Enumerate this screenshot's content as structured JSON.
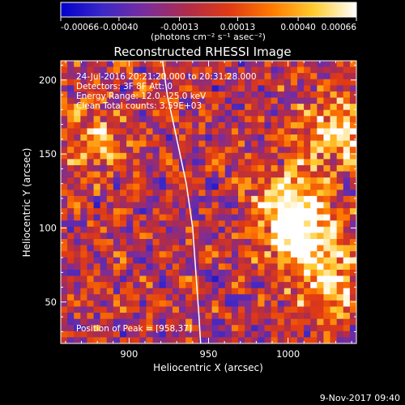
{
  "chart_data": {
    "type": "heatmap",
    "title": "Reconstructed RHESSI Image",
    "xlabel": "Heliocentric X (arcsec)",
    "ylabel": "Heliocentric Y (arcsec)",
    "xlim": [
      857,
      1043
    ],
    "ylim": [
      22,
      213
    ],
    "x_ticks": [
      900,
      950,
      1000
    ],
    "y_ticks": [
      50,
      100,
      150,
      200
    ],
    "colorbar": {
      "ticks": [
        "-0.00066",
        "-0.00040",
        "-0.00013",
        "0.00013",
        "0.00040",
        "0.00066"
      ],
      "range": [
        -0.00066,
        0.00066
      ],
      "unit_label": "(photons cm⁻² s⁻¹ asec⁻²)",
      "colors": [
        "#0000cc",
        "#3c28c8",
        "#7a2d9c",
        "#b02c4a",
        "#e03a14",
        "#ff7a00",
        "#ffcc30",
        "#ffffff"
      ]
    },
    "annotations": {
      "time_range": "24-Jul-2016 20:21:20.000 to 20:31:28.000",
      "detectors": "Detectors: 3F 8F  Att: 0",
      "energy_range": "Energy Range: 12.0 - 25.0 keV",
      "method_and_counts": "Clean     Total counts: 3.59E+03",
      "peak": "Position of Peak = [958,37]"
    },
    "limb_curve_x": [
      [
        921,
        213
      ],
      [
        924,
        190
      ],
      [
        930,
        160
      ],
      [
        936,
        130
      ],
      [
        940,
        100
      ],
      [
        942,
        70
      ],
      [
        944,
        40
      ],
      [
        945,
        22
      ]
    ],
    "grid_cols": 45,
    "grid_rows": 46,
    "bright_regions": [
      {
        "x": 1010,
        "y": 95,
        "strength": 0.7
      },
      {
        "x": 1030,
        "y": 165,
        "strength": 0.55
      },
      {
        "x": 1000,
        "y": 120,
        "strength": 0.45
      },
      {
        "x": 1025,
        "y": 60,
        "strength": 0.45
      },
      {
        "x": 880,
        "y": 160,
        "strength": 0.35
      }
    ]
  },
  "footer": {
    "timestamp": "9-Nov-2017 09:40"
  }
}
